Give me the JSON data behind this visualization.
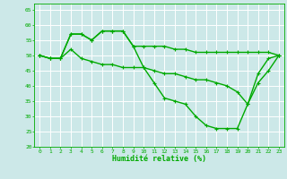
{
  "line1": {
    "x": [
      0,
      1,
      2,
      3,
      4,
      5,
      6,
      7,
      8,
      9,
      10,
      11,
      12,
      13,
      14,
      15,
      16,
      17,
      18,
      19,
      20,
      21,
      22,
      23
    ],
    "y": [
      50,
      49,
      49,
      52,
      49,
      48,
      47,
      47,
      46,
      46,
      46,
      45,
      44,
      44,
      43,
      42,
      42,
      41,
      40,
      38,
      34,
      41,
      45,
      50
    ]
  },
  "line2": {
    "x": [
      0,
      1,
      2,
      3,
      4,
      5,
      6,
      7,
      8,
      9,
      10,
      11,
      12,
      13,
      14,
      15,
      16,
      17,
      18,
      19,
      20,
      21,
      22,
      23
    ],
    "y": [
      50,
      49,
      49,
      57,
      57,
      55,
      58,
      58,
      58,
      53,
      53,
      53,
      53,
      52,
      52,
      51,
      51,
      51,
      51,
      51,
      51,
      51,
      51,
      50
    ]
  },
  "line3": {
    "x": [
      0,
      1,
      2,
      3,
      4,
      5,
      6,
      7,
      8,
      9,
      10,
      11,
      12,
      13,
      14,
      15,
      16,
      17,
      18,
      19,
      20,
      21,
      22,
      23
    ],
    "y": [
      50,
      49,
      49,
      57,
      57,
      55,
      58,
      58,
      58,
      53,
      46,
      41,
      36,
      35,
      34,
      30,
      27,
      26,
      26,
      26,
      34,
      44,
      49,
      50
    ]
  },
  "xlabel": "Humidité relative (%)",
  "ylim": [
    20,
    67
  ],
  "xlim": [
    -0.5,
    23.5
  ],
  "yticks": [
    20,
    25,
    30,
    35,
    40,
    45,
    50,
    55,
    60,
    65
  ],
  "xticks": [
    0,
    1,
    2,
    3,
    4,
    5,
    6,
    7,
    8,
    9,
    10,
    11,
    12,
    13,
    14,
    15,
    16,
    17,
    18,
    19,
    20,
    21,
    22,
    23
  ],
  "bg_color": "#cce8e8",
  "grid_color": "#ffffff",
  "line_color": "#00aa00",
  "tick_color": "#00aa00",
  "xlabel_color": "#00aa00",
  "marker_size": 3,
  "linewidth": 1.0
}
